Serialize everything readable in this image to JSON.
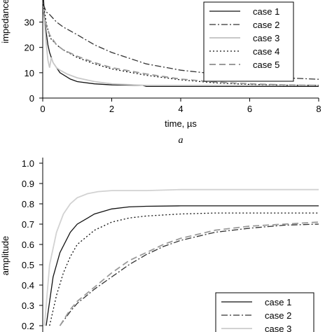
{
  "chart_data": [
    {
      "type": "line",
      "panel_label": "a",
      "xlabel": "time, µs",
      "ylabel": "impedance",
      "xlim": [
        0,
        8
      ],
      "ylim": [
        0,
        40
      ],
      "xticks": [
        0,
        2,
        4,
        6,
        8
      ],
      "yticks": [
        0,
        10,
        20,
        30
      ],
      "grid": false,
      "legend_position": "top-right",
      "series": [
        {
          "name": "case 1",
          "style": "solid",
          "color": "#111111",
          "x": [
            0.02,
            0.05,
            0.1,
            0.15,
            0.2,
            0.3,
            0.5,
            0.8,
            1.0,
            1.5,
            2.0,
            2.9,
            3.0,
            4.0,
            6.0,
            8.0
          ],
          "y": [
            40,
            32,
            26,
            21,
            18,
            14,
            10,
            7.5,
            6.5,
            5.6,
            5.2,
            5.0,
            4.6,
            4.6,
            4.6,
            4.6
          ]
        },
        {
          "name": "case 2",
          "style": "dash-dot",
          "color": "#333333",
          "x": [
            0.02,
            0.1,
            0.2,
            0.4,
            0.6,
            1.0,
            1.5,
            2.0,
            3.0,
            4.0,
            5.0,
            6.0,
            7.0,
            8.0
          ],
          "y": [
            37,
            34,
            33,
            30,
            28,
            25,
            21,
            18,
            13.5,
            11,
            9.5,
            8.5,
            8,
            7.4
          ]
        },
        {
          "name": "case 3",
          "style": "solid",
          "color": "#c8c8c8",
          "x": [
            0.02,
            0.05,
            0.1,
            0.15,
            0.2,
            0.25,
            0.3,
            0.4,
            0.5,
            0.7,
            1.0,
            1.5,
            2.0,
            3.0,
            4.0,
            6.0,
            8.0
          ],
          "y": [
            36,
            30,
            22,
            15,
            12,
            16,
            14,
            12,
            11,
            9.5,
            8,
            6.5,
            5.6,
            5.0,
            5.0,
            5.0,
            5.0
          ]
        },
        {
          "name": "case 4",
          "style": "dotted",
          "color": "#111111",
          "x": [
            0.02,
            0.1,
            0.2,
            0.4,
            0.6,
            0.8,
            1.0,
            1.5,
            2.0,
            3.0,
            4.0,
            5.0,
            6.0,
            7.0,
            8.0
          ],
          "y": [
            37,
            30,
            24,
            21,
            19,
            17.5,
            16,
            13.5,
            11.5,
            9,
            7.2,
            6,
            5.4,
            5.1,
            5.0
          ]
        },
        {
          "name": "case 5",
          "style": "dashed",
          "color": "#9a9a9a",
          "x": [
            0.02,
            0.1,
            0.2,
            0.4,
            0.6,
            1.0,
            1.5,
            2.0,
            3.0,
            4.0,
            5.0,
            6.0,
            7.0,
            8.0
          ],
          "y": [
            34,
            29,
            25,
            21,
            19,
            16.5,
            14,
            12,
            9.5,
            7.5,
            6.3,
            5.6,
            5.2,
            5.0
          ]
        }
      ]
    },
    {
      "type": "line",
      "xlabel": "",
      "ylabel": "amplitude",
      "xlim": [
        0,
        8
      ],
      "ylim": [
        0,
        1.0
      ],
      "yticks": [
        0.2,
        0.3,
        0.4,
        0.5,
        0.6,
        0.7,
        0.8,
        0.9,
        1.0
      ],
      "ytick_labels": [
        "0.2",
        "0.3",
        "0.4",
        "0.5",
        "0.6",
        "0.7",
        "0.8",
        "0.9",
        "1.0"
      ],
      "grid": false,
      "legend_position": "bottom-right",
      "series": [
        {
          "name": "case 1",
          "style": "solid",
          "color": "#111111",
          "x": [
            0.1,
            0.3,
            0.5,
            0.8,
            1.0,
            1.5,
            2.0,
            2.5,
            3.0,
            4.0,
            5.0,
            6.0,
            7.0,
            8.0
          ],
          "y": [
            0.2,
            0.44,
            0.56,
            0.66,
            0.7,
            0.75,
            0.775,
            0.785,
            0.788,
            0.79,
            0.79,
            0.79,
            0.79,
            0.79
          ]
        },
        {
          "name": "case 2",
          "style": "dash-dot",
          "color": "#333333",
          "x": [
            0.5,
            0.8,
            1.0,
            1.5,
            2.0,
            2.5,
            3.0,
            3.5,
            4.0,
            5.0,
            6.0,
            7.0,
            8.0
          ],
          "y": [
            0.2,
            0.27,
            0.31,
            0.38,
            0.44,
            0.5,
            0.55,
            0.59,
            0.62,
            0.66,
            0.68,
            0.695,
            0.7
          ]
        },
        {
          "name": "case 3",
          "style": "solid",
          "color": "#d2d2d2",
          "x": [
            0.05,
            0.2,
            0.4,
            0.6,
            0.8,
            1.0,
            1.3,
            1.6,
            2.0,
            3.0,
            4.0,
            5.0,
            6.0,
            7.0,
            8.0
          ],
          "y": [
            0.2,
            0.5,
            0.66,
            0.75,
            0.8,
            0.83,
            0.85,
            0.86,
            0.865,
            0.865,
            0.87,
            0.87,
            0.87,
            0.87,
            0.87
          ]
        },
        {
          "name": "",
          "style": "dotted",
          "color": "#111111",
          "x": [
            0.2,
            0.4,
            0.6,
            0.8,
            1.0,
            1.5,
            2.0,
            2.5,
            3.0,
            4.0,
            5.0,
            6.0,
            7.0,
            8.0
          ],
          "y": [
            0.2,
            0.35,
            0.46,
            0.54,
            0.6,
            0.67,
            0.71,
            0.73,
            0.74,
            0.75,
            0.755,
            0.755,
            0.755,
            0.755
          ]
        },
        {
          "name": "",
          "style": "dashed",
          "color": "#9a9a9a",
          "x": [
            0.5,
            0.8,
            1.0,
            1.5,
            2.0,
            2.5,
            3.0,
            3.5,
            4.0,
            5.0,
            6.0,
            7.0,
            8.0
          ],
          "y": [
            0.2,
            0.28,
            0.32,
            0.39,
            0.46,
            0.52,
            0.56,
            0.6,
            0.63,
            0.67,
            0.69,
            0.7,
            0.71
          ]
        }
      ]
    }
  ]
}
